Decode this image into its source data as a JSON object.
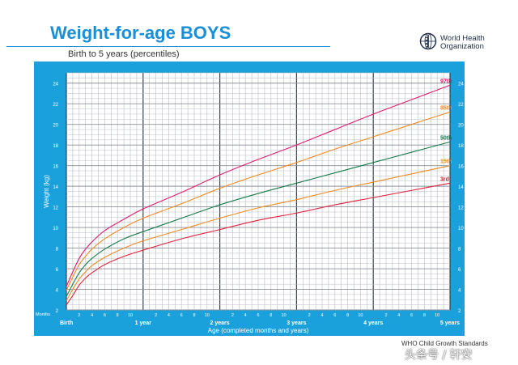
{
  "header": {
    "title": "Weight-for-age BOYS",
    "subtitle": "Birth to 5 years (percentiles)",
    "org_line1": "World Health",
    "org_line2": "Organization"
  },
  "footer": {
    "source": "WHO Child Growth Standards",
    "watermark": "头条号 / 轩安"
  },
  "colors": {
    "frame": "#1aa1dc",
    "grid_light": "#b8bcc4",
    "grid_dark": "#3a3f4a",
    "p97": "#e21b6e",
    "p85": "#f08a23",
    "p50": "#157a4a",
    "p15": "#f08a23",
    "p3": "#e2203a"
  },
  "chart_data": {
    "type": "line",
    "title": "Weight-for-age BOYS",
    "subtitle": "Birth to 5 years (percentiles)",
    "xlabel": "Age (completed months and years)",
    "ylabel": "Weight (kg)",
    "xlim": [
      0,
      60
    ],
    "ylim": [
      2,
      25
    ],
    "grid": true,
    "x_corner_label": "Months",
    "x_month_ticks": [
      2,
      4,
      6,
      8,
      10,
      14,
      16,
      18,
      20,
      22,
      26,
      28,
      30,
      32,
      34,
      38,
      40,
      42,
      44,
      46,
      50,
      52,
      54,
      56,
      58
    ],
    "x_month_tick_labels": [
      "2",
      "4",
      "6",
      "8",
      "10",
      "2",
      "4",
      "6",
      "8",
      "10",
      "2",
      "4",
      "6",
      "8",
      "10",
      "2",
      "4",
      "6",
      "8",
      "10",
      "2",
      "4",
      "6",
      "8",
      "10"
    ],
    "x_year_ticks": [
      0,
      12,
      24,
      36,
      48,
      60
    ],
    "x_year_labels": [
      "Birth",
      "1 year",
      "2 years",
      "3 years",
      "4 years",
      "5 years"
    ],
    "y_ticks": [
      2,
      4,
      6,
      8,
      10,
      12,
      14,
      16,
      18,
      20,
      22,
      24
    ],
    "y_tick_labels": [
      "2",
      "4",
      "6",
      "8",
      "10",
      "12",
      "14",
      "16",
      "18",
      "20",
      "22",
      "24"
    ],
    "x": [
      0,
      1,
      2,
      3,
      4,
      6,
      9,
      12,
      18,
      24,
      30,
      36,
      42,
      48,
      54,
      60
    ],
    "series": [
      {
        "name": "97th",
        "color": "#e21b6e",
        "values": [
          4.3,
          5.7,
          7.0,
          7.9,
          8.6,
          9.7,
          10.8,
          11.8,
          13.4,
          15.1,
          16.6,
          18.0,
          19.5,
          21.0,
          22.4,
          23.8
        ]
      },
      {
        "name": "85th",
        "color": "#f08a23",
        "values": [
          3.9,
          5.2,
          6.4,
          7.2,
          7.9,
          8.9,
          10.0,
          10.9,
          12.3,
          13.8,
          15.1,
          16.3,
          17.6,
          18.8,
          20.0,
          21.2
        ]
      },
      {
        "name": "50th",
        "color": "#157a4a",
        "values": [
          3.3,
          4.5,
          5.6,
          6.4,
          7.0,
          7.9,
          8.9,
          9.6,
          10.9,
          12.2,
          13.3,
          14.3,
          15.3,
          16.3,
          17.3,
          18.3
        ]
      },
      {
        "name": "15th",
        "color": "#f08a23",
        "values": [
          2.9,
          4.0,
          5.0,
          5.7,
          6.3,
          7.1,
          8.0,
          8.7,
          9.8,
          10.9,
          11.9,
          12.7,
          13.6,
          14.4,
          15.2,
          16.0
        ]
      },
      {
        "name": "3rd",
        "color": "#e2203a",
        "values": [
          2.5,
          3.4,
          4.4,
          5.1,
          5.6,
          6.4,
          7.2,
          7.8,
          8.9,
          9.8,
          10.7,
          11.4,
          12.2,
          12.9,
          13.6,
          14.3
        ]
      }
    ]
  }
}
